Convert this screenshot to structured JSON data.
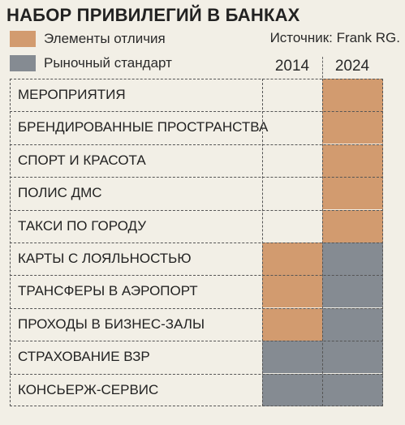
{
  "title": "НАБОР ПРИВИЛЕГИЙ В БАНКАХ",
  "source": "Источник: Frank RG.",
  "colors": {
    "distinctive": "#d29b6f",
    "market_standard": "#858b92",
    "background": "#f2efe6"
  },
  "chart_data": {
    "type": "table",
    "title": "НАБОР ПРИВИЛЕГИЙ В БАНКАХ",
    "legend": [
      {
        "key": "distinctive",
        "label": "Элементы отличия"
      },
      {
        "key": "market_standard",
        "label": "Рыночный стандарт"
      }
    ],
    "columns": [
      "2014",
      "2024"
    ],
    "rows": [
      {
        "label": "МЕРОПРИЯТИЯ",
        "values": [
          null,
          "distinctive"
        ]
      },
      {
        "label": "БРЕНДИРОВАННЫЕ ПРОСТРАНСТВА",
        "values": [
          null,
          "distinctive"
        ]
      },
      {
        "label": "СПОРТ И КРАСОТА",
        "values": [
          null,
          "distinctive"
        ]
      },
      {
        "label": "ПОЛИС ДМС",
        "values": [
          null,
          "distinctive"
        ]
      },
      {
        "label": "ТАКСИ ПО ГОРОДУ",
        "values": [
          null,
          "distinctive"
        ]
      },
      {
        "label": "КАРТЫ С ЛОЯЛЬНОСТЬЮ",
        "values": [
          "distinctive",
          "market_standard"
        ]
      },
      {
        "label": "ТРАНСФЕРЫ В АЭРОПОРТ",
        "values": [
          "distinctive",
          "market_standard"
        ]
      },
      {
        "label": "ПРОХОДЫ В БИЗНЕС-ЗАЛЫ",
        "values": [
          "distinctive",
          "market_standard"
        ]
      },
      {
        "label": "СТРАХОВАНИЕ ВЗР",
        "values": [
          "market_standard",
          "market_standard"
        ]
      },
      {
        "label": "КОНСЬЕРЖ-СЕРВИС",
        "values": [
          "market_standard",
          "market_standard"
        ]
      }
    ]
  }
}
